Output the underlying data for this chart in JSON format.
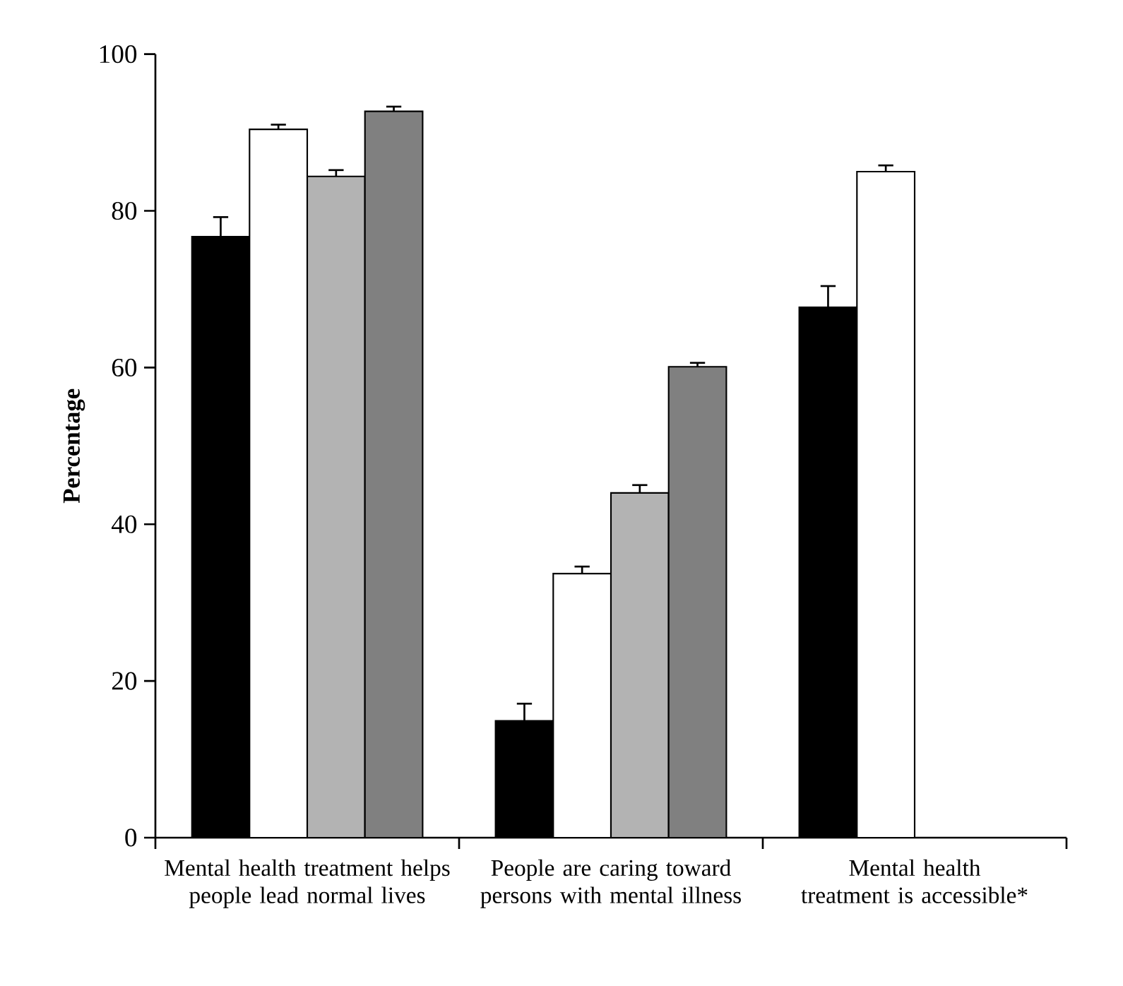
{
  "chart_data": {
    "type": "bar",
    "ylabel": "Percentage",
    "categories": [
      "Mental health treatment helps people lead normal lives",
      "People are caring toward persons with mental illness",
      "Mental health treatment is accessible*"
    ],
    "series": [
      {
        "color": "#000000",
        "values": [
          76.7,
          14.9,
          67.7
        ],
        "errors": [
          2.5,
          2.2,
          2.7
        ]
      },
      {
        "color": "#ffffff",
        "values": [
          90.4,
          33.7,
          85.0
        ],
        "errors": [
          0.6,
          0.9,
          0.8
        ]
      },
      {
        "color": "#b3b3b3",
        "values": [
          84.4,
          44.0,
          null
        ],
        "errors": [
          0.8,
          1.0,
          null
        ]
      },
      {
        "color": "#808080",
        "values": [
          92.7,
          60.1,
          null
        ],
        "errors": [
          0.6,
          0.5,
          null
        ]
      }
    ],
    "ylim": [
      0,
      100
    ],
    "yticks": [
      0,
      20,
      40,
      60,
      80,
      100
    ],
    "grid": false
  }
}
